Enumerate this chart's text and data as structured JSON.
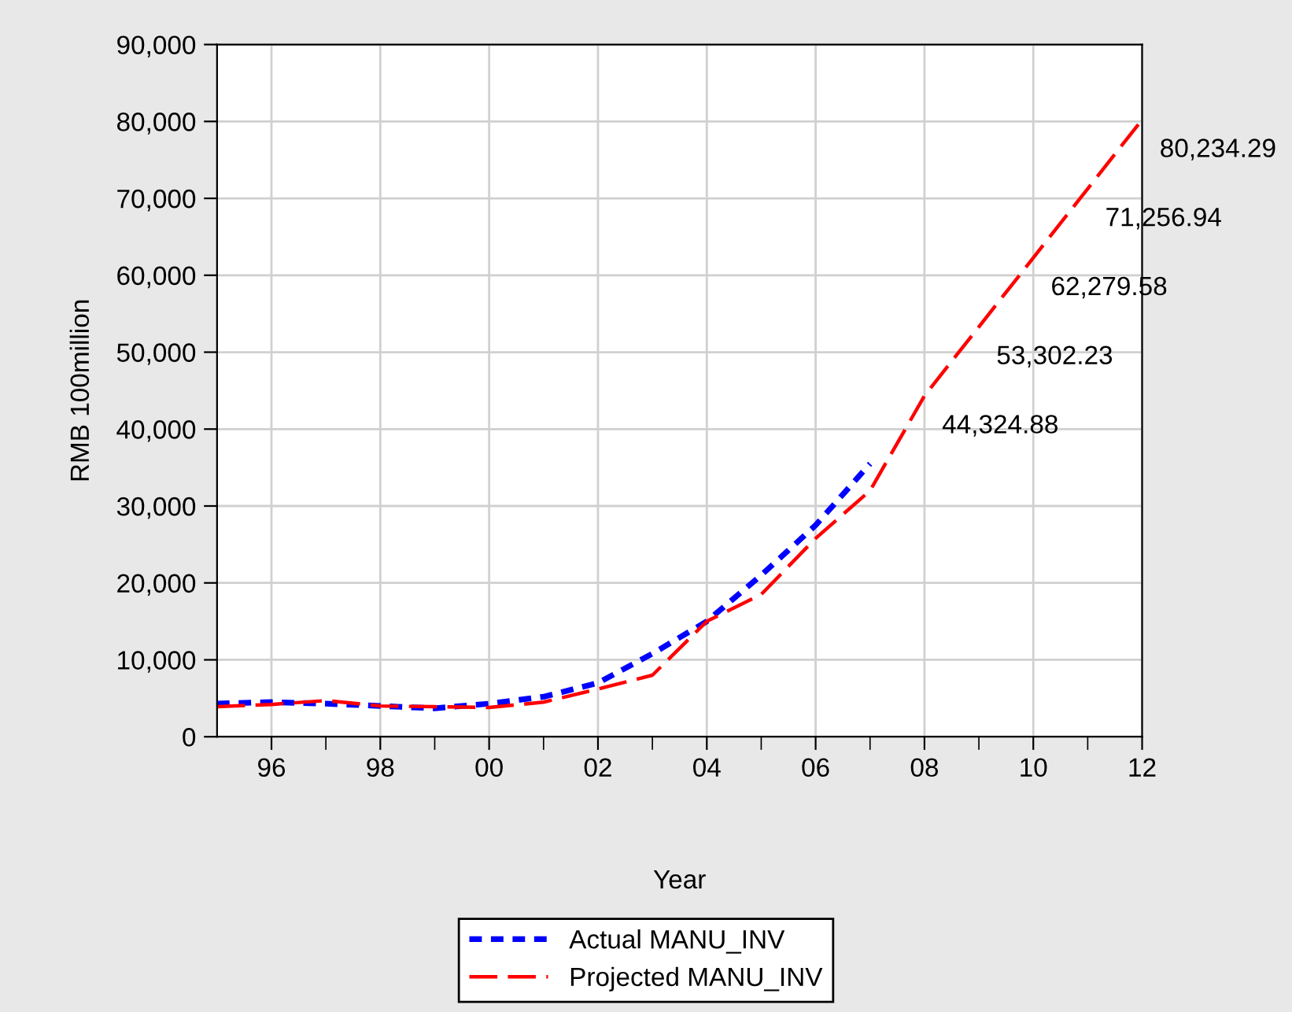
{
  "chart_data": {
    "type": "line",
    "xlabel": "Year",
    "ylabel": "RMB 100million",
    "x": [
      1995,
      1996,
      1997,
      1998,
      1999,
      2000,
      2001,
      2002,
      2003,
      2004,
      2005,
      2006,
      2007,
      2008,
      2009,
      2010,
      2011,
      2012
    ],
    "series": [
      {
        "name": "Actual MANU_INV",
        "color": "#0000ff",
        "line_style": "dotted",
        "values": [
          4300,
          4500,
          4300,
          4000,
          3700,
          4300,
          5200,
          7000,
          10800,
          15000,
          21000,
          27500,
          35500,
          null,
          null,
          null,
          null,
          null
        ]
      },
      {
        "name": "Projected MANU_INV",
        "color": "#ff0000",
        "line_style": "dashed",
        "values": [
          3900,
          4200,
          4700,
          4000,
          3900,
          3800,
          4500,
          6200,
          8000,
          15000,
          18500,
          25800,
          32000,
          44324.88,
          53302.23,
          62279.58,
          71256.94,
          80234.29
        ],
        "value_labels": [
          null,
          null,
          null,
          null,
          null,
          null,
          null,
          null,
          null,
          null,
          null,
          null,
          null,
          "44,324.88",
          "53,302.23",
          "62,279.58",
          "71,256.94",
          "80,234.29"
        ]
      }
    ],
    "xlim": [
      1995,
      2012
    ],
    "xticks": [
      {
        "value": 1996,
        "label": "96"
      },
      {
        "value": 1997,
        "label": null
      },
      {
        "value": 1998,
        "label": "98"
      },
      {
        "value": 1999,
        "label": null
      },
      {
        "value": 2000,
        "label": "00"
      },
      {
        "value": 2001,
        "label": null
      },
      {
        "value": 2002,
        "label": "02"
      },
      {
        "value": 2003,
        "label": null
      },
      {
        "value": 2004,
        "label": "04"
      },
      {
        "value": 2005,
        "label": null
      },
      {
        "value": 2006,
        "label": "06"
      },
      {
        "value": 2007,
        "label": null
      },
      {
        "value": 2008,
        "label": "08"
      },
      {
        "value": 2009,
        "label": null
      },
      {
        "value": 2010,
        "label": "10"
      },
      {
        "value": 2011,
        "label": null
      },
      {
        "value": 2012,
        "label": "12"
      }
    ],
    "ylim": [
      0,
      90000
    ],
    "yticks": [
      {
        "value": 0,
        "label": "0"
      },
      {
        "value": 10000,
        "label": "10,000"
      },
      {
        "value": 20000,
        "label": "20,000"
      },
      {
        "value": 30000,
        "label": "30,000"
      },
      {
        "value": 40000,
        "label": "40,000"
      },
      {
        "value": 50000,
        "label": "50,000"
      },
      {
        "value": 60000,
        "label": "60,000"
      },
      {
        "value": 70000,
        "label": "70,000"
      },
      {
        "value": 80000,
        "label": "80,000"
      },
      {
        "value": 90000,
        "label": "90,000"
      }
    ],
    "grid": true,
    "legend": "bottom",
    "marker": "none"
  }
}
